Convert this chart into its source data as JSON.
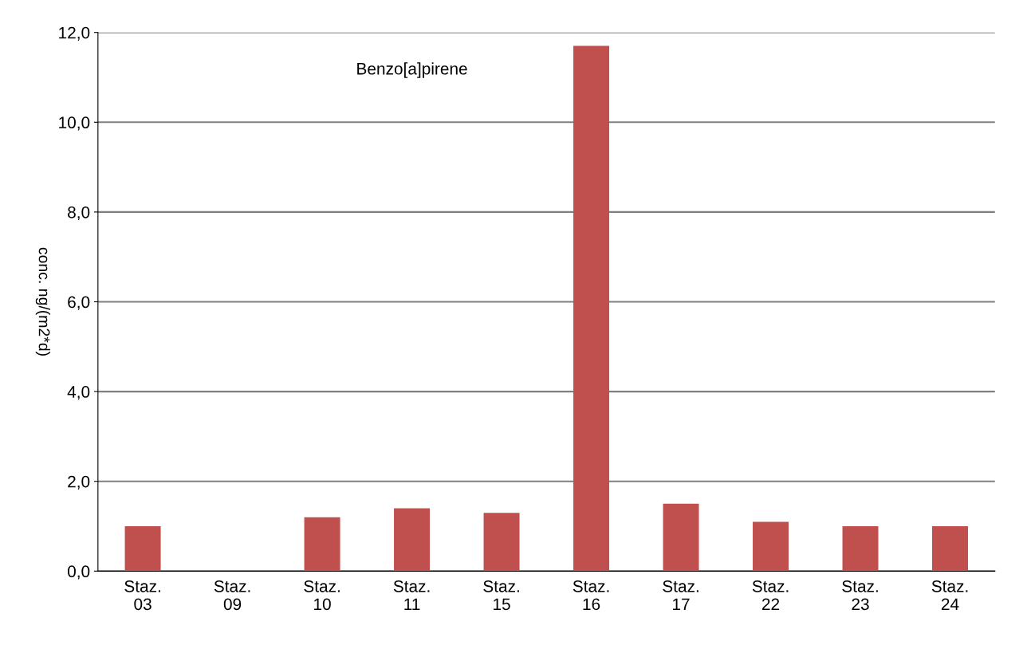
{
  "chart_data": {
    "type": "bar",
    "title": "Benzo[a]pirene",
    "ylabel": "conc. ng/(m2*d)",
    "categories": [
      "Staz.\n03",
      "Staz.\n09",
      "Staz.\n10",
      "Staz.\n11",
      "Staz.\n15",
      "Staz.\n16",
      "Staz.\n17",
      "Staz.\n22",
      "Staz.\n23",
      "Staz.\n24"
    ],
    "values": [
      1.0,
      0.0,
      1.2,
      1.4,
      1.3,
      11.7,
      1.5,
      1.1,
      1.0,
      1.0
    ],
    "color": "#c0504d",
    "ylim": [
      0,
      12
    ],
    "yticks": [
      {
        "value": 0,
        "label": "0,0"
      },
      {
        "value": 2,
        "label": "2,0"
      },
      {
        "value": 4,
        "label": "4,0"
      },
      {
        "value": 6,
        "label": "6,0"
      },
      {
        "value": 8,
        "label": "8,0"
      },
      {
        "value": 10,
        "label": "10,0"
      },
      {
        "value": 12,
        "label": "12,0"
      }
    ],
    "grid": "y"
  }
}
